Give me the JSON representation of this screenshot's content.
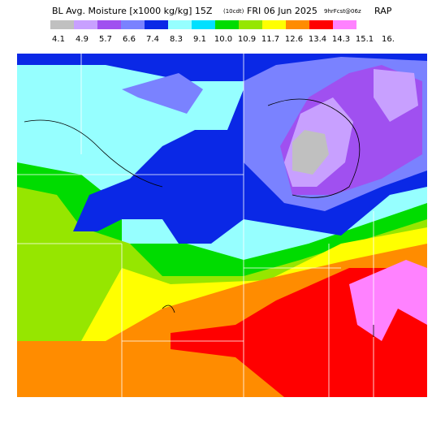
{
  "header": {
    "title_main": "BL Avg. Moisture [x1000 kg/kg] 15Z",
    "title_local": "(10cdt)",
    "title_date": "FRI 06 Jun 2025",
    "title_fcst": "9hrFcst@06z",
    "title_model": "RAP"
  },
  "legend": {
    "labels": [
      "4.1",
      "4.9",
      "5.7",
      "6.6",
      "7.4",
      "8.3",
      "9.1",
      "10.0",
      "10.9",
      "11.7",
      "12.6",
      "13.4",
      "14.3",
      "15.1",
      "16."
    ],
    "colors": [
      "#c0c0c0",
      "#c8a0ff",
      "#a050f0",
      "#7a82ff",
      "#0a28e6",
      "#96ffff",
      "#00e0ff",
      "#00dc00",
      "#96e600",
      "#ffff00",
      "#ff8c00",
      "#ff0000",
      "#ff82ff",
      "#ffffff"
    ]
  }
}
